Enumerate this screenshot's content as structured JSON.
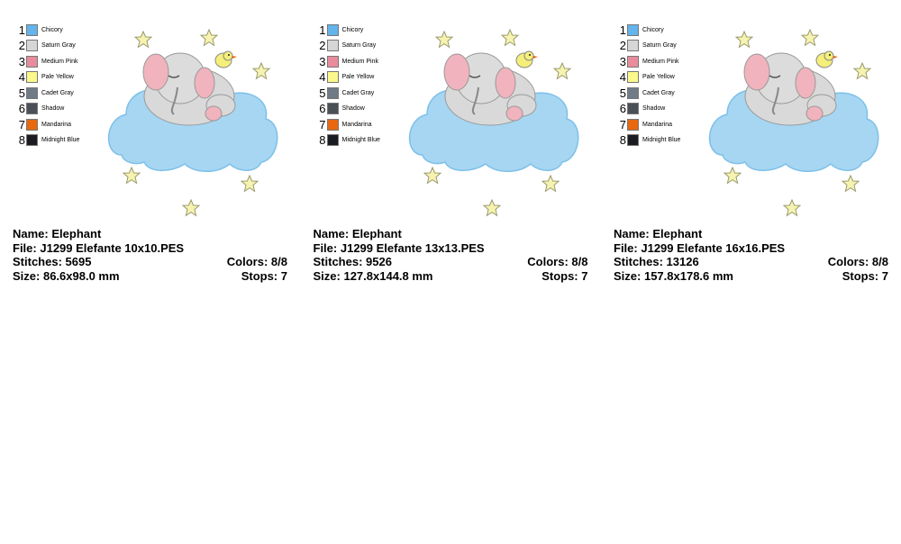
{
  "panels": [
    {
      "colors": [
        {
          "number": 1,
          "name": "Chicory",
          "color": "#63b4ea"
        },
        {
          "number": 2,
          "name": "Saturn Gray",
          "color": "#d6d6d6"
        },
        {
          "number": 3,
          "name": "Medium Pink",
          "color": "#e88c9c"
        },
        {
          "number": 4,
          "name": "Pale Yellow",
          "color": "#fbf88c"
        },
        {
          "number": 5,
          "name": "Cadet Gray",
          "color": "#6f7b87"
        },
        {
          "number": 6,
          "name": "Shadow",
          "color": "#4b5056"
        },
        {
          "number": 7,
          "name": "Mandarina",
          "color": "#e8670f"
        },
        {
          "number": 8,
          "name": "Midnight Blue",
          "color": "#1b1b22"
        }
      ],
      "name": {
        "label": "Name:",
        "value": "Elephant"
      },
      "file": {
        "label": "File:",
        "value": "J1299 Elefante 10x10.PES"
      },
      "stitches": {
        "label": "Stitches:",
        "value": "5695"
      },
      "colors_count": {
        "label": "Colors:",
        "value": "8/8"
      },
      "size": {
        "label": "Size:",
        "value": "86.6x98.0 mm"
      },
      "stops": {
        "label": "Stops:",
        "value": "7"
      }
    },
    {
      "colors": [
        {
          "number": 1,
          "name": "Chicory",
          "color": "#63b4ea"
        },
        {
          "number": 2,
          "name": "Saturn Gray",
          "color": "#d6d6d6"
        },
        {
          "number": 3,
          "name": "Medium Pink",
          "color": "#e88c9c"
        },
        {
          "number": 4,
          "name": "Pale Yellow",
          "color": "#fbf88c"
        },
        {
          "number": 5,
          "name": "Cadet Gray",
          "color": "#6f7b87"
        },
        {
          "number": 6,
          "name": "Shadow",
          "color": "#4b5056"
        },
        {
          "number": 7,
          "name": "Mandarina",
          "color": "#e8670f"
        },
        {
          "number": 8,
          "name": "Midnight Blue",
          "color": "#1b1b22"
        }
      ],
      "name": {
        "label": "Name:",
        "value": "Elephant"
      },
      "file": {
        "label": "File:",
        "value": "J1299 Elefante 13x13.PES"
      },
      "stitches": {
        "label": "Stitches:",
        "value": "9526"
      },
      "colors_count": {
        "label": "Colors:",
        "value": "8/8"
      },
      "size": {
        "label": "Size:",
        "value": "127.8x144.8 mm"
      },
      "stops": {
        "label": "Stops:",
        "value": "7"
      }
    },
    {
      "colors": [
        {
          "number": 1,
          "name": "Chicory",
          "color": "#63b4ea"
        },
        {
          "number": 2,
          "name": "Saturn Gray",
          "color": "#d6d6d6"
        },
        {
          "number": 3,
          "name": "Medium Pink",
          "color": "#e88c9c"
        },
        {
          "number": 4,
          "name": "Pale Yellow",
          "color": "#fbf88c"
        },
        {
          "number": 5,
          "name": "Cadet Gray",
          "color": "#6f7b87"
        },
        {
          "number": 6,
          "name": "Shadow",
          "color": "#4b5056"
        },
        {
          "number": 7,
          "name": "Mandarina",
          "color": "#e8670f"
        },
        {
          "number": 8,
          "name": "Midnight Blue",
          "color": "#1b1b22"
        }
      ],
      "name": {
        "label": "Name:",
        "value": "Elephant"
      },
      "file": {
        "label": "File:",
        "value": "J1299 Elefante 16x16.PES"
      },
      "stitches": {
        "label": "Stitches:",
        "value": "13126"
      },
      "colors_count": {
        "label": "Colors:",
        "value": "8/8"
      },
      "size": {
        "label": "Size:",
        "value": "157.8x178.6 mm"
      },
      "stops": {
        "label": "Stops:",
        "value": "7"
      }
    }
  ]
}
